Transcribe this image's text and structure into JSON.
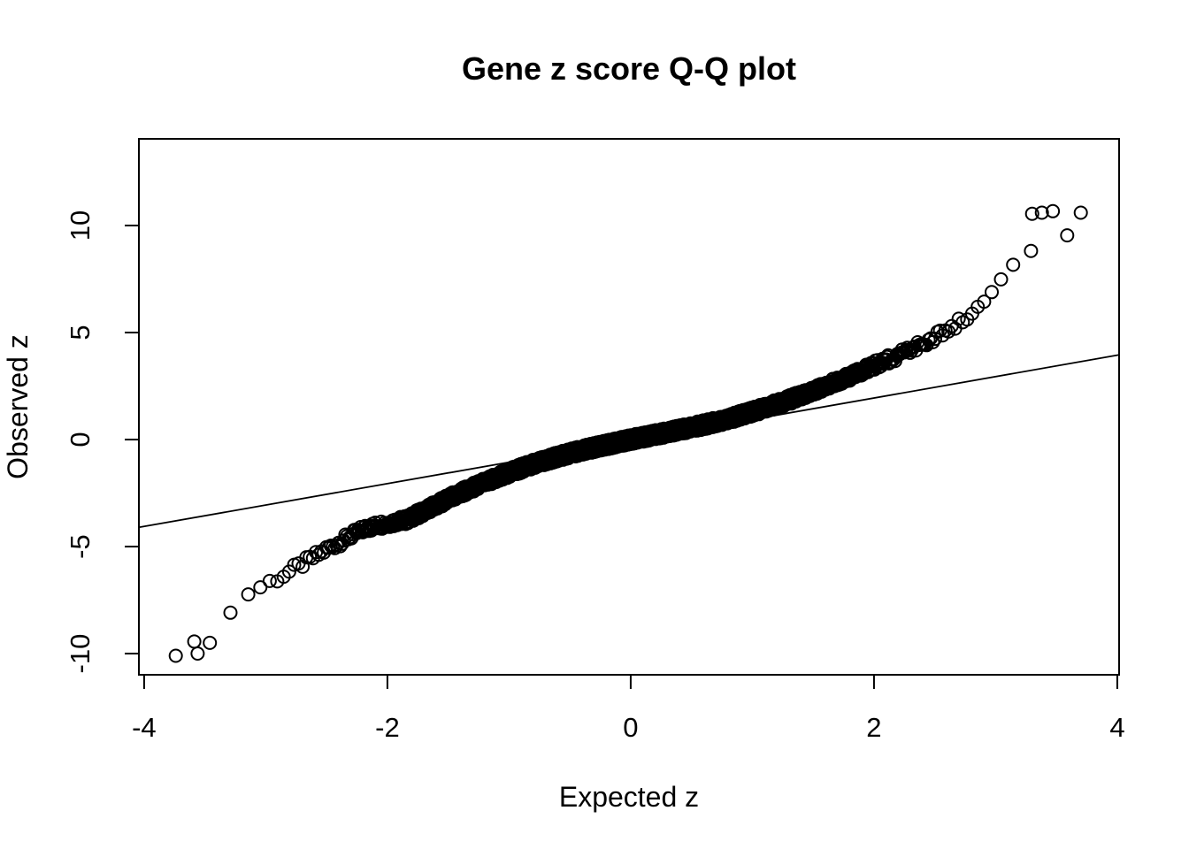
{
  "chart_data": {
    "type": "scatter",
    "subtype": "qq-plot",
    "title": "Gene z score Q-Q plot",
    "xlabel": "Expected z",
    "ylabel": "Observed z",
    "xticks": [
      -4,
      -2,
      0,
      2,
      4
    ],
    "xtick_labels": [
      "-4",
      "-2",
      "0",
      "2",
      "4"
    ],
    "yticks": [
      -10,
      -5,
      0,
      5,
      10
    ],
    "ytick_labels": [
      "-10",
      "-5",
      "0",
      "5",
      "10"
    ],
    "xlim": [
      -4.043,
      4.015
    ],
    "ylim": [
      -10.99,
      14.05
    ],
    "grid": false,
    "legend": "none",
    "n_points": 3000,
    "curve_anchors": [
      [
        -3.43,
        -9.25
      ],
      [
        -3.37,
        -8.8
      ],
      [
        -3.3,
        -8.15
      ],
      [
        -3.22,
        -7.85
      ],
      [
        -3.15,
        -7.2
      ],
      [
        -3.0,
        -6.75
      ],
      [
        -2.84,
        -6.3
      ],
      [
        -2.65,
        -5.65
      ],
      [
        -2.49,
        -5.1
      ],
      [
        -2.3,
        -4.5
      ],
      [
        -2.18,
        -4.15
      ],
      [
        -2.0,
        -3.9
      ],
      [
        -1.84,
        -3.75
      ],
      [
        -1.6,
        -3.05
      ],
      [
        -1.4,
        -2.5
      ],
      [
        -1.2,
        -2.0
      ],
      [
        -1.0,
        -1.55
      ],
      [
        -0.8,
        -1.15
      ],
      [
        -0.6,
        -0.8
      ],
      [
        -0.4,
        -0.5
      ],
      [
        -0.2,
        -0.25
      ],
      [
        0.0,
        0.0
      ],
      [
        0.2,
        0.22
      ],
      [
        0.4,
        0.45
      ],
      [
        0.56,
        0.64
      ],
      [
        0.8,
        0.95
      ],
      [
        1.0,
        1.3
      ],
      [
        1.25,
        1.75
      ],
      [
        1.5,
        2.25
      ],
      [
        1.84,
        3.05
      ],
      [
        2.0,
        3.45
      ],
      [
        2.23,
        4.0
      ],
      [
        2.5,
        4.75
      ],
      [
        2.75,
        5.7
      ],
      [
        2.9,
        6.5
      ],
      [
        3.0,
        7.05
      ],
      [
        3.1,
        7.75
      ],
      [
        3.2,
        8.35
      ],
      [
        3.3,
        9.0
      ],
      [
        3.43,
        9.45
      ]
    ],
    "outlier_points": [
      [
        3.3,
        10.55
      ],
      [
        3.38,
        10.6
      ],
      [
        3.47,
        10.67
      ],
      [
        3.7,
        10.6
      ],
      [
        -3.46,
        -9.5
      ],
      [
        -3.56,
        -10.0
      ],
      [
        -3.74,
        -10.1
      ]
    ],
    "ref_line": {
      "slope": 1.0,
      "intercept": -0.06
    },
    "jitter_sd": 0.21,
    "marker": {
      "shape": "open-circle",
      "radius_px": 7,
      "stroke_px": 2,
      "color": "#000000"
    },
    "background": "#ffffff",
    "foreground": "#000000"
  }
}
